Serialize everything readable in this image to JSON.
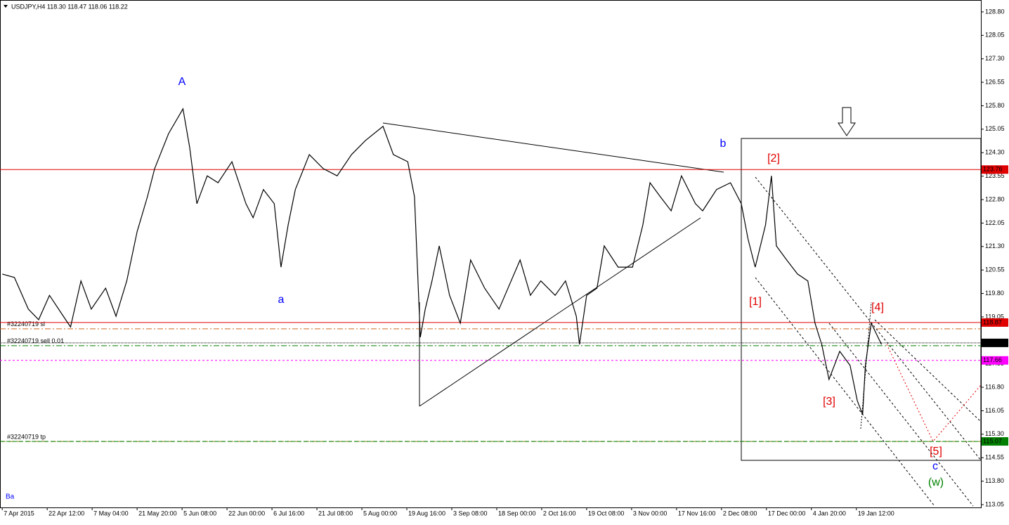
{
  "chart_data": {
    "type": "line",
    "title": "USDJPY,H4  118.30 118.47 118.06 118.22",
    "corner_note": "Ba",
    "xlim": [
      -0.05,
      21.77
    ],
    "ylim": [
      112.96,
      129.18
    ],
    "xticks": [
      {
        "value": 0,
        "label": "7 Apr 2015"
      },
      {
        "value": 1,
        "label": "22 Apr 12:00"
      },
      {
        "value": 2,
        "label": "7 May 04:00"
      },
      {
        "value": 3,
        "label": "21 May 20:00"
      },
      {
        "value": 4,
        "label": "5 Jun 08:00"
      },
      {
        "value": 5,
        "label": "22 Jun 00:00"
      },
      {
        "value": 6,
        "label": "6 Jul 16:00"
      },
      {
        "value": 7,
        "label": "21 Jul 08:00"
      },
      {
        "value": 8,
        "label": "5 Aug 00:00"
      },
      {
        "value": 9,
        "label": "19 Aug 16:00"
      },
      {
        "value": 10,
        "label": "3 Sep 08:00"
      },
      {
        "value": 11,
        "label": "18 Sep 00:00"
      },
      {
        "value": 12,
        "label": "2 Oct 16:00"
      },
      {
        "value": 13,
        "label": "19 Oct 08:00"
      },
      {
        "value": 14,
        "label": "3 Nov 00:00"
      },
      {
        "value": 15,
        "label": "17 Nov 16:00"
      },
      {
        "value": 16,
        "label": "2 Dec 08:00"
      },
      {
        "value": 17,
        "label": "17 Dec 00:00"
      },
      {
        "value": 18,
        "label": "4 Jan 20:00"
      },
      {
        "value": 19,
        "label": "19 Jan 12:00"
      }
    ],
    "yticks": [
      {
        "value": 128.8,
        "label": "128.80"
      },
      128.05,
      {
        "value": 127.3,
        "label": "127.30"
      },
      126.55,
      {
        "value": 125.8,
        "label": "125.80"
      },
      125.05,
      {
        "value": 124.3,
        "label": "124.30"
      },
      123.55,
      {
        "value": 122.8,
        "label": "122.80"
      },
      122.05,
      {
        "value": 121.3,
        "label": "121.30"
      },
      120.55,
      {
        "value": 119.8,
        "label": "119.80"
      },
      119.05,
      117.55,
      {
        "value": 116.8,
        "label": "116.80"
      },
      116.05,
      {
        "value": 115.3,
        "label": "115.30"
      },
      114.55,
      {
        "value": 113.8,
        "label": "113.80"
      },
      113.05
    ],
    "series": [
      {
        "name": "USDJPY",
        "color": "#000000",
        "x": [
          0,
          0.27,
          0.58,
          0.81,
          1.05,
          1.36,
          1.52,
          1.75,
          1.98,
          2.3,
          2.53,
          2.77,
          3.0,
          3.23,
          3.39,
          3.7,
          4.02,
          4.17,
          4.33,
          4.56,
          4.8,
          5.11,
          5.42,
          5.58,
          5.81,
          6.05,
          6.2,
          6.36,
          6.52,
          6.83,
          7.14,
          7.45,
          7.77,
          8.08,
          8.47,
          8.7,
          9.02,
          9.17,
          9.3,
          9.41,
          9.56,
          9.72,
          9.95,
          10.19,
          10.42,
          10.73,
          11.05,
          11.52,
          11.75,
          11.98,
          12.3,
          12.53,
          12.77,
          12.84,
          13.0,
          13.23,
          13.39,
          13.7,
          14.02,
          14.25,
          14.41,
          14.64,
          14.88,
          15.11,
          15.42,
          15.58,
          15.89,
          16.2,
          16.44,
          16.59,
          16.75,
          16.98,
          17.11,
          17.22,
          17.45,
          17.69,
          17.92,
          18.08,
          18.23,
          18.39,
          18.63,
          18.86,
          19.02,
          19.14,
          19.2,
          19.33,
          19.48,
          19.56
        ],
        "values": [
          120.42,
          120.31,
          119.3,
          118.96,
          119.74,
          119.07,
          118.73,
          120.2,
          119.3,
          119.97,
          119.07,
          120.2,
          121.77,
          122.89,
          123.79,
          124.91,
          125.7,
          124.46,
          122.67,
          123.56,
          123.34,
          124.01,
          122.67,
          122.22,
          123.12,
          122.67,
          120.64,
          121.99,
          123.12,
          124.24,
          123.79,
          123.56,
          124.24,
          124.69,
          125.14,
          124.24,
          124.01,
          122.89,
          118.4,
          119.3,
          120.2,
          121.32,
          119.74,
          118.85,
          120.87,
          119.97,
          119.3,
          120.87,
          119.74,
          120.2,
          119.74,
          120.2,
          119.07,
          118.17,
          119.74,
          119.97,
          121.32,
          120.64,
          120.64,
          121.99,
          123.34,
          122.89,
          122.44,
          123.56,
          122.67,
          122.44,
          123.12,
          123.34,
          122.67,
          121.54,
          120.64,
          121.99,
          123.56,
          121.32,
          120.87,
          120.42,
          120.2,
          118.85,
          118.17,
          117.05,
          117.95,
          117.5,
          116.37,
          115.93,
          117.5,
          118.85,
          118.4,
          118.17
        ]
      }
    ],
    "levels": [
      {
        "value": 123.76,
        "color": "#e00000"
      },
      {
        "value": 118.87,
        "color": "#e00000"
      },
      {
        "value": 118.22,
        "color": "#000000"
      },
      {
        "value": 117.66,
        "color": "#ff00ff"
      },
      {
        "value": 115.07,
        "color": "#008000"
      }
    ],
    "orders": [
      {
        "label": "#32240719 sl",
        "value": 118.67,
        "color": "#d2691e"
      },
      {
        "label": "#32240719 sell 0.01",
        "value": 118.13,
        "color": "#008000"
      },
      {
        "label": "#32240719 tp",
        "value": 115.07,
        "color": "#808000"
      }
    ],
    "annotations": [
      {
        "text": "A",
        "color": "#0000ff"
      },
      {
        "text": "a",
        "color": "#0000ff"
      },
      {
        "text": "b",
        "color": "#0000ff"
      },
      {
        "text": "[1]",
        "color": "#e00000"
      },
      {
        "text": "[2]",
        "color": "#e00000"
      },
      {
        "text": "[3]",
        "color": "#e00000"
      },
      {
        "text": "[4]",
        "color": "#e00000"
      },
      {
        "text": "[5]",
        "color": "#e00000"
      },
      {
        "text": "c",
        "color": "#0000ff"
      },
      {
        "text": "(w)",
        "color": "#008000"
      }
    ]
  }
}
